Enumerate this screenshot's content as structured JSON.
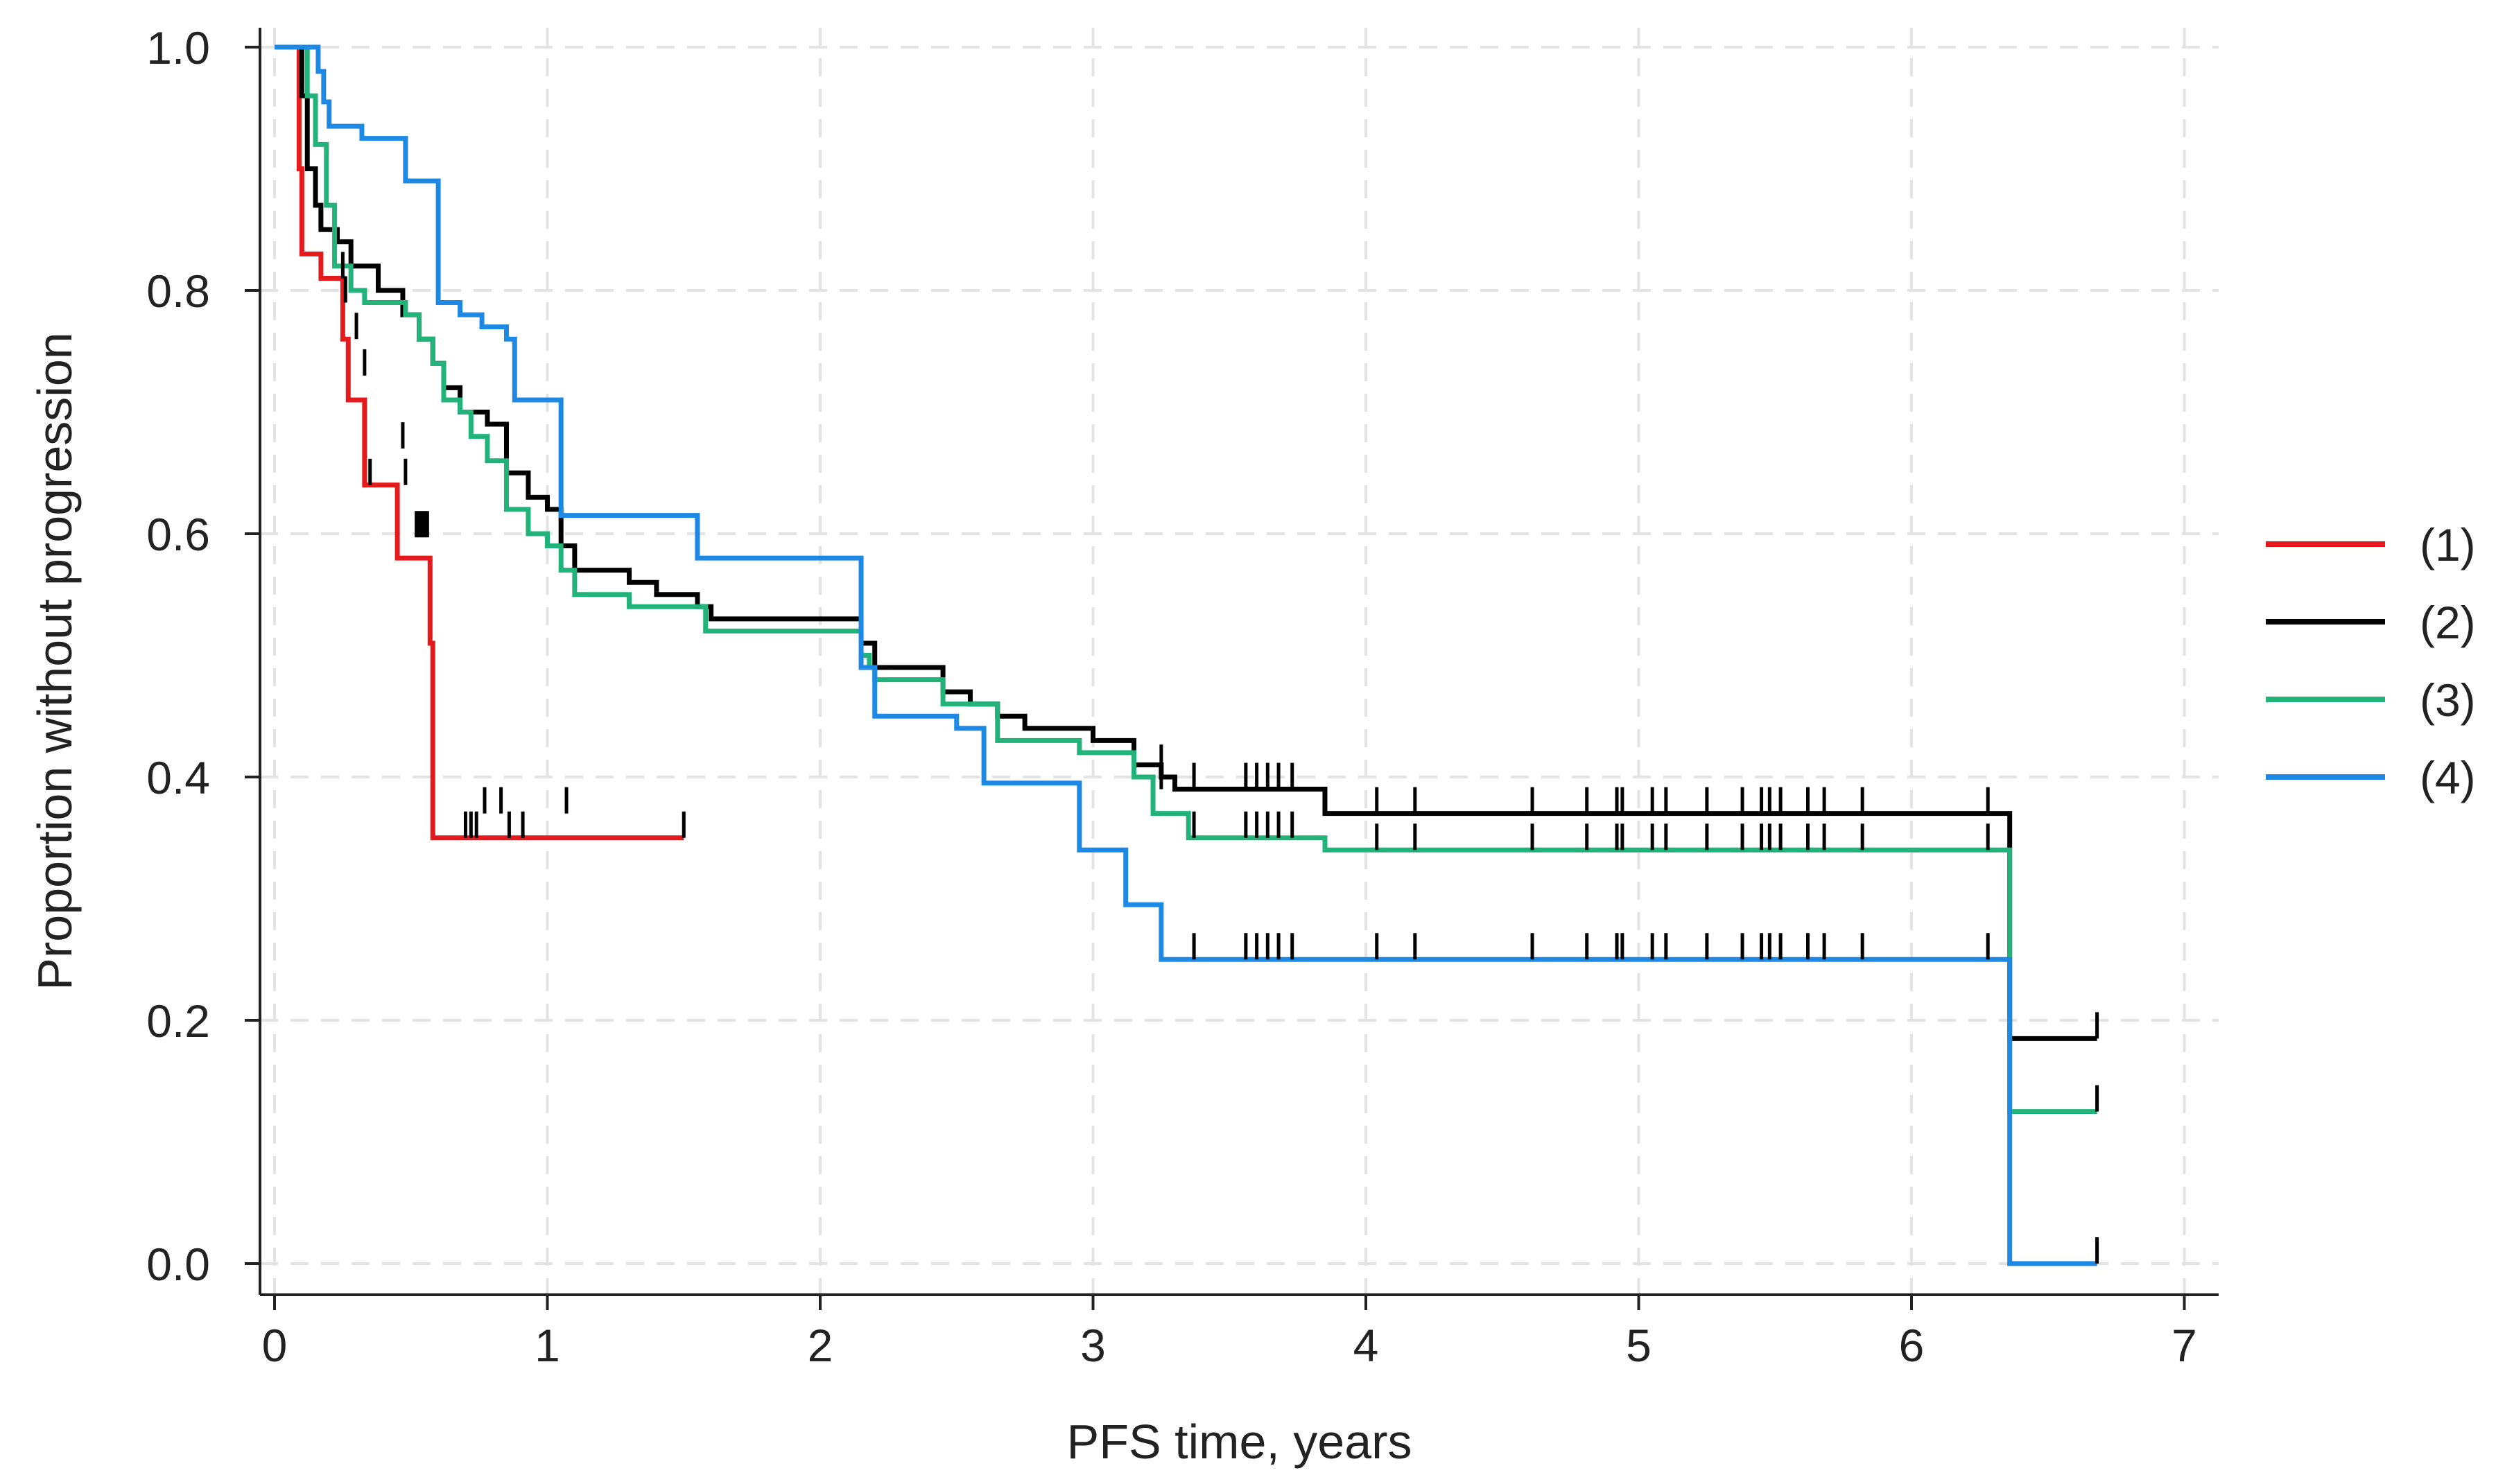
{
  "chart_data": {
    "type": "line",
    "subtype": "kaplan-meier",
    "title": "",
    "xlabel": "PFS time, years",
    "ylabel": "Proportion without progression",
    "xlim": [
      0,
      7
    ],
    "ylim": [
      0,
      1
    ],
    "x_ticks": [
      0,
      1,
      2,
      3,
      4,
      5,
      6,
      7
    ],
    "x_tick_labels": [
      "0",
      "1",
      "2",
      "3",
      "4",
      "5",
      "6",
      "7"
    ],
    "y_ticks": [
      0,
      0.2,
      0.4,
      0.6,
      0.8,
      1.0
    ],
    "y_tick_labels": [
      "0.0",
      "0.2",
      "0.4",
      "0.6",
      "0.8",
      "1.0"
    ],
    "grid": true,
    "legend_position": "right",
    "series": [
      {
        "name": "(1)",
        "color": "#e41a1c",
        "steps": [
          [
            0,
            1.0
          ],
          [
            0.08,
            1.0
          ],
          [
            0.09,
            0.9
          ],
          [
            0.1,
            0.83
          ],
          [
            0.17,
            0.81
          ],
          [
            0.25,
            0.76
          ],
          [
            0.27,
            0.71
          ],
          [
            0.33,
            0.64
          ],
          [
            0.45,
            0.58
          ],
          [
            0.57,
            0.51
          ],
          [
            0.58,
            0.35
          ],
          [
            1.5,
            0.35
          ]
        ],
        "censored": [
          [
            0.35,
            0.64
          ],
          [
            0.48,
            0.64
          ],
          [
            0.52,
            0.597
          ],
          [
            0.53,
            0.597
          ],
          [
            0.54,
            0.597
          ],
          [
            0.55,
            0.597
          ],
          [
            0.56,
            0.597
          ],
          [
            0.7,
            0.35
          ],
          [
            0.72,
            0.35
          ],
          [
            0.74,
            0.35
          ],
          [
            0.86,
            0.35
          ],
          [
            0.91,
            0.35
          ],
          [
            1.5,
            0.35
          ]
        ]
      },
      {
        "name": "(2)",
        "color": "#000000",
        "steps": [
          [
            0,
            1.0
          ],
          [
            0.08,
            1.0
          ],
          [
            0.1,
            0.96
          ],
          [
            0.12,
            0.9
          ],
          [
            0.15,
            0.87
          ],
          [
            0.17,
            0.85
          ],
          [
            0.23,
            0.84
          ],
          [
            0.28,
            0.82
          ],
          [
            0.38,
            0.8
          ],
          [
            0.47,
            0.78
          ],
          [
            0.53,
            0.76
          ],
          [
            0.58,
            0.74
          ],
          [
            0.62,
            0.72
          ],
          [
            0.68,
            0.7
          ],
          [
            0.78,
            0.69
          ],
          [
            0.85,
            0.65
          ],
          [
            0.93,
            0.63
          ],
          [
            1.0,
            0.62
          ],
          [
            1.05,
            0.59
          ],
          [
            1.1,
            0.57
          ],
          [
            1.3,
            0.56
          ],
          [
            1.4,
            0.55
          ],
          [
            1.55,
            0.54
          ],
          [
            1.6,
            0.53
          ],
          [
            2.15,
            0.51
          ],
          [
            2.2,
            0.49
          ],
          [
            2.45,
            0.47
          ],
          [
            2.55,
            0.46
          ],
          [
            2.65,
            0.45
          ],
          [
            2.75,
            0.44
          ],
          [
            3.0,
            0.43
          ],
          [
            3.15,
            0.41
          ],
          [
            3.25,
            0.4
          ],
          [
            3.3,
            0.39
          ],
          [
            3.85,
            0.37
          ],
          [
            6.35,
            0.37
          ],
          [
            6.36,
            0.185
          ],
          [
            6.68,
            0.185
          ]
        ],
        "censored": [
          [
            0.25,
            0.81
          ],
          [
            0.26,
            0.79
          ],
          [
            0.3,
            0.76
          ],
          [
            0.33,
            0.73
          ],
          [
            0.47,
            0.67
          ],
          [
            0.77,
            0.37
          ],
          [
            0.83,
            0.37
          ],
          [
            1.07,
            0.37
          ],
          [
            3.25,
            0.405
          ],
          [
            3.25,
            0.39
          ],
          [
            3.37,
            0.39
          ],
          [
            3.56,
            0.39
          ],
          [
            3.6,
            0.39
          ],
          [
            3.64,
            0.39
          ],
          [
            3.68,
            0.39
          ],
          [
            3.73,
            0.39
          ],
          [
            4.04,
            0.37
          ],
          [
            4.18,
            0.37
          ],
          [
            4.61,
            0.37
          ],
          [
            4.81,
            0.37
          ],
          [
            4.92,
            0.37
          ],
          [
            4.94,
            0.37
          ],
          [
            5.05,
            0.37
          ],
          [
            5.1,
            0.37
          ],
          [
            5.25,
            0.37
          ],
          [
            5.38,
            0.37
          ],
          [
            5.45,
            0.37
          ],
          [
            5.48,
            0.37
          ],
          [
            5.52,
            0.37
          ],
          [
            5.62,
            0.37
          ],
          [
            5.68,
            0.37
          ],
          [
            5.82,
            0.37
          ],
          [
            6.28,
            0.37
          ],
          [
            6.68,
            0.185
          ]
        ]
      },
      {
        "name": "(3)",
        "color": "#21b37a",
        "steps": [
          [
            0,
            1.0
          ],
          [
            0.08,
            1.0
          ],
          [
            0.12,
            0.96
          ],
          [
            0.15,
            0.92
          ],
          [
            0.19,
            0.87
          ],
          [
            0.22,
            0.82
          ],
          [
            0.28,
            0.8
          ],
          [
            0.33,
            0.79
          ],
          [
            0.48,
            0.78
          ],
          [
            0.53,
            0.76
          ],
          [
            0.58,
            0.74
          ],
          [
            0.62,
            0.71
          ],
          [
            0.68,
            0.7
          ],
          [
            0.72,
            0.68
          ],
          [
            0.78,
            0.66
          ],
          [
            0.85,
            0.62
          ],
          [
            0.93,
            0.6
          ],
          [
            1.0,
            0.59
          ],
          [
            1.05,
            0.57
          ],
          [
            1.1,
            0.55
          ],
          [
            1.3,
            0.54
          ],
          [
            1.58,
            0.52
          ],
          [
            2.15,
            0.5
          ],
          [
            2.18,
            0.49
          ],
          [
            2.2,
            0.48
          ],
          [
            2.45,
            0.46
          ],
          [
            2.65,
            0.43
          ],
          [
            2.95,
            0.42
          ],
          [
            3.15,
            0.4
          ],
          [
            3.22,
            0.37
          ],
          [
            3.35,
            0.35
          ],
          [
            3.85,
            0.34
          ],
          [
            6.35,
            0.34
          ],
          [
            6.36,
            0.125
          ],
          [
            6.68,
            0.125
          ]
        ],
        "censored": [
          [
            3.37,
            0.35
          ],
          [
            3.56,
            0.35
          ],
          [
            3.6,
            0.35
          ],
          [
            3.64,
            0.35
          ],
          [
            3.68,
            0.35
          ],
          [
            3.73,
            0.35
          ],
          [
            4.04,
            0.34
          ],
          [
            4.18,
            0.34
          ],
          [
            4.61,
            0.34
          ],
          [
            4.81,
            0.34
          ],
          [
            4.92,
            0.34
          ],
          [
            4.94,
            0.34
          ],
          [
            5.05,
            0.34
          ],
          [
            5.1,
            0.34
          ],
          [
            5.25,
            0.34
          ],
          [
            5.38,
            0.34
          ],
          [
            5.45,
            0.34
          ],
          [
            5.48,
            0.34
          ],
          [
            5.52,
            0.34
          ],
          [
            5.62,
            0.34
          ],
          [
            5.68,
            0.34
          ],
          [
            5.82,
            0.34
          ],
          [
            6.28,
            0.34
          ],
          [
            6.68,
            0.125
          ]
        ]
      },
      {
        "name": "(4)",
        "color": "#1e88e5",
        "steps": [
          [
            0,
            1.0
          ],
          [
            0.16,
            0.98
          ],
          [
            0.18,
            0.955
          ],
          [
            0.2,
            0.935
          ],
          [
            0.32,
            0.925
          ],
          [
            0.48,
            0.89
          ],
          [
            0.6,
            0.79
          ],
          [
            0.68,
            0.78
          ],
          [
            0.76,
            0.77
          ],
          [
            0.85,
            0.76
          ],
          [
            0.88,
            0.71
          ],
          [
            1.05,
            0.615
          ],
          [
            1.55,
            0.58
          ],
          [
            2.15,
            0.49
          ],
          [
            2.2,
            0.45
          ],
          [
            2.5,
            0.44
          ],
          [
            2.6,
            0.395
          ],
          [
            2.95,
            0.34
          ],
          [
            3.12,
            0.295
          ],
          [
            3.25,
            0.25
          ],
          [
            6.35,
            0.25
          ],
          [
            6.36,
            0.0
          ],
          [
            6.68,
            0.0
          ]
        ],
        "censored": [
          [
            3.37,
            0.25
          ],
          [
            3.56,
            0.25
          ],
          [
            3.6,
            0.25
          ],
          [
            3.64,
            0.25
          ],
          [
            3.68,
            0.25
          ],
          [
            3.73,
            0.25
          ],
          [
            4.04,
            0.25
          ],
          [
            4.18,
            0.25
          ],
          [
            4.61,
            0.25
          ],
          [
            4.81,
            0.25
          ],
          [
            4.92,
            0.25
          ],
          [
            4.94,
            0.25
          ],
          [
            5.05,
            0.25
          ],
          [
            5.1,
            0.25
          ],
          [
            5.25,
            0.25
          ],
          [
            5.38,
            0.25
          ],
          [
            5.45,
            0.25
          ],
          [
            5.48,
            0.25
          ],
          [
            5.52,
            0.25
          ],
          [
            5.62,
            0.25
          ],
          [
            5.68,
            0.25
          ],
          [
            5.82,
            0.25
          ],
          [
            6.28,
            0.25
          ],
          [
            6.68,
            0.0
          ]
        ]
      }
    ]
  }
}
